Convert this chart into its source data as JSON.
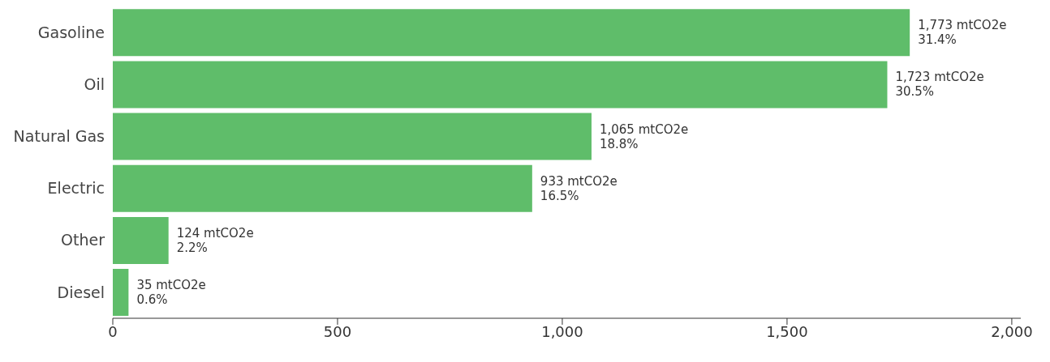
{
  "chart_data": {
    "type": "bar",
    "orientation": "horizontal",
    "categories": [
      "Gasoline",
      "Oil",
      "Natural Gas",
      "Electric",
      "Other",
      "Diesel"
    ],
    "values": [
      1773,
      1723,
      1065,
      933,
      124,
      35
    ],
    "color": "#5fbd6a",
    "value_labels": [
      "1,773 mtCO2e\n31.4%",
      "1,723 mtCO2e\n30.5%",
      "1,065 mtCO2e\n18.8%",
      "933 mtCO2e\n16.5%",
      "124 mtCO2e\n2.2%",
      "35 mtCO2e\n0.6%"
    ],
    "xlim": [
      0,
      2020
    ],
    "xticks": [
      0,
      500,
      {
        "value": 1000,
        "label": "1,000"
      },
      {
        "value": 1500,
        "label": "1,500"
      },
      {
        "value": 2000,
        "label": "2,000"
      }
    ],
    "grid": false,
    "legend": false
  }
}
